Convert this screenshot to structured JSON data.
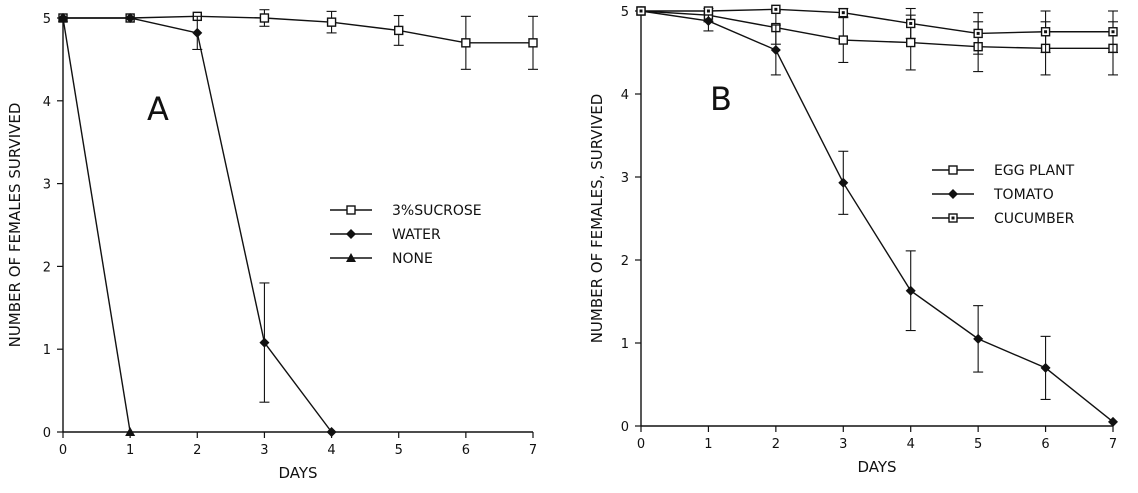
{
  "chart_data": [
    {
      "type": "line",
      "panel_label": "A",
      "xlabel": "DAYS",
      "ylabel": "NUMBER OF FEMALES  SURVIVED",
      "xlim": [
        0,
        7
      ],
      "ylim": [
        0,
        5
      ],
      "xticks": [
        "0",
        "1",
        "2",
        "3",
        "4",
        "5",
        "6",
        "7"
      ],
      "yticks": [
        "0",
        "1",
        "2",
        "3",
        "4",
        "5"
      ],
      "legend_position": "right-middle",
      "grid": false,
      "series": [
        {
          "name": "3%SUCROSE",
          "marker": "open-square",
          "x": [
            0,
            1,
            2,
            3,
            4,
            5,
            6,
            7
          ],
          "y": [
            5,
            5,
            5.02,
            5,
            4.95,
            4.85,
            4.7,
            4.7
          ],
          "err": [
            0,
            0,
            0,
            0.1,
            0.13,
            0.18,
            0.32,
            0.32
          ]
        },
        {
          "name": "WATER",
          "marker": "filled-diamond",
          "x": [
            0,
            1,
            2,
            3,
            4
          ],
          "y": [
            5,
            5,
            4.82,
            1.08,
            0
          ],
          "err": [
            0,
            0,
            0.2,
            0.72,
            0
          ]
        },
        {
          "name": "NONE",
          "marker": "filled-triangle",
          "x": [
            0,
            1
          ],
          "y": [
            5,
            0
          ],
          "err": [
            0,
            0
          ]
        }
      ]
    },
    {
      "type": "line",
      "panel_label": "B",
      "xlabel": "DAYS",
      "ylabel": "NUMBER OF FEMALES, SURVIVED",
      "xlim": [
        0,
        7
      ],
      "ylim": [
        0,
        5
      ],
      "xticks": [
        "0",
        "1",
        "2",
        "3",
        "4",
        "5",
        "6",
        "7"
      ],
      "yticks": [
        "0",
        "1",
        "2",
        "3",
        "4",
        "5"
      ],
      "legend_position": "right-upper",
      "grid": false,
      "series": [
        {
          "name": "EGG PLANT",
          "marker": "open-square",
          "x": [
            0,
            1,
            2,
            3,
            4,
            5,
            6,
            7
          ],
          "y": [
            5,
            4.95,
            4.8,
            4.65,
            4.62,
            4.57,
            4.55,
            4.55
          ],
          "err": [
            0,
            0.08,
            0.2,
            0.27,
            0.33,
            0.3,
            0.32,
            0.32
          ]
        },
        {
          "name": "TOMATO",
          "marker": "filled-diamond",
          "x": [
            0,
            1,
            2,
            3,
            4,
            5,
            6,
            7
          ],
          "y": [
            5,
            4.88,
            4.53,
            2.93,
            1.63,
            1.05,
            0.7,
            0.05
          ],
          "err": [
            0,
            0.12,
            0.3,
            0.38,
            0.48,
            0.4,
            0.38,
            0
          ]
        },
        {
          "name": "CUCUMBER",
          "marker": "open-square-dot",
          "x": [
            0,
            1,
            2,
            3,
            4,
            5,
            6,
            7
          ],
          "y": [
            5,
            5,
            5.02,
            4.98,
            4.85,
            4.73,
            4.75,
            4.75
          ],
          "err": [
            0,
            0,
            0,
            0.05,
            0.18,
            0.25,
            0.25,
            0.25
          ]
        }
      ]
    }
  ]
}
